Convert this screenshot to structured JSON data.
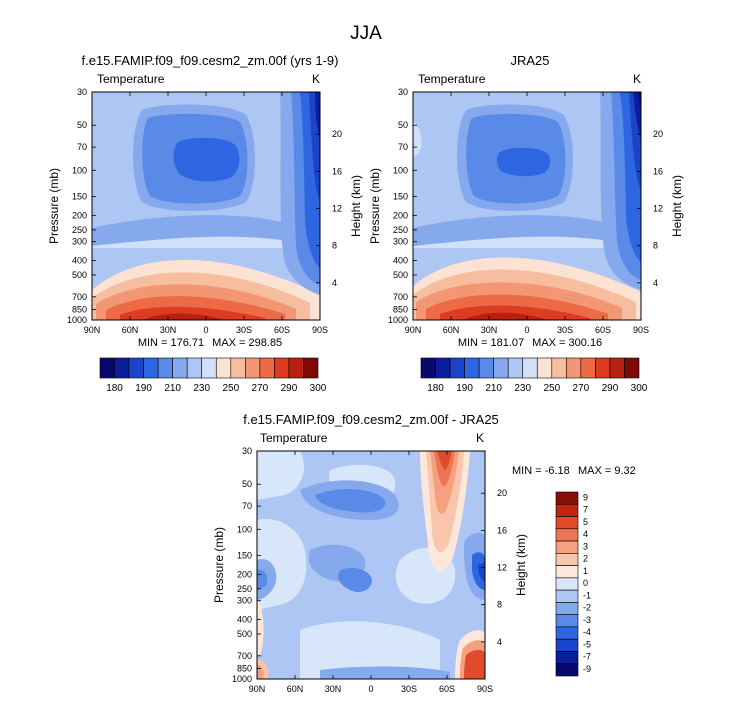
{
  "page_title": "JJA",
  "chart_data": [
    {
      "type": "heatmap",
      "title": "f.e15.FAMIP.f09_f09.cesm2_zm.00f (yrs 1-9)",
      "left_label": "Temperature",
      "right_label": "K",
      "ylabel": "Pressure (mb)",
      "ylabel_right": "Height (km)",
      "x_ticks": [
        "90N",
        "60N",
        "30N",
        "0",
        "30S",
        "60S",
        "90S"
      ],
      "y_ticks": [
        "30",
        "50",
        "70",
        "100",
        "150",
        "200",
        "250",
        "300",
        "400",
        "500",
        "700",
        "850",
        "1000"
      ],
      "y_ticks_right": [
        "20",
        "16",
        "12",
        "8",
        "4"
      ],
      "min_label": "MIN = 176.71",
      "max_label": "MAX = 298.85",
      "min": 176.71,
      "max": 298.85,
      "colorbar_labels": [
        "180",
        "190",
        "210",
        "230",
        "250",
        "270",
        "290",
        "300"
      ]
    },
    {
      "type": "heatmap",
      "title": "JRA25",
      "left_label": "Temperature",
      "right_label": "K",
      "ylabel": "Pressure (mb)",
      "ylabel_right": "Height (km)",
      "x_ticks": [
        "90N",
        "60N",
        "30N",
        "0",
        "30S",
        "60S",
        "90S"
      ],
      "y_ticks": [
        "30",
        "50",
        "70",
        "100",
        "150",
        "200",
        "250",
        "300",
        "400",
        "500",
        "700",
        "850",
        "1000"
      ],
      "y_ticks_right": [
        "20",
        "16",
        "12",
        "8",
        "4"
      ],
      "min_label": "MIN = 181.07",
      "max_label": "MAX = 300.16",
      "min": 181.07,
      "max": 300.16,
      "colorbar_labels": [
        "180",
        "190",
        "210",
        "230",
        "250",
        "270",
        "290",
        "300"
      ]
    },
    {
      "type": "heatmap",
      "title": "f.e15.FAMIP.f09_f09.cesm2_zm.00f - JRA25",
      "left_label": "Temperature",
      "right_label": "K",
      "ylabel": "Pressure (mb)",
      "ylabel_right": "Height (km)",
      "x_ticks": [
        "90N",
        "60N",
        "30N",
        "0",
        "30S",
        "60S",
        "90S"
      ],
      "y_ticks": [
        "30",
        "50",
        "70",
        "100",
        "150",
        "200",
        "250",
        "300",
        "400",
        "500",
        "700",
        "850",
        "1000"
      ],
      "y_ticks_right": [
        "20",
        "16",
        "12",
        "8",
        "4"
      ],
      "min_label": "MIN =  -6.18",
      "max_label": "MAX =   9.32",
      "min": -6.18,
      "max": 9.32,
      "colorbar_labels": [
        "9",
        "7",
        "5",
        "4",
        "3",
        "2",
        "1",
        "0",
        "-1",
        "-2",
        "-3",
        "-4",
        "-5",
        "-7",
        "-9"
      ]
    }
  ],
  "palettes": {
    "absolute": [
      "#08086e",
      "#0a1e9e",
      "#1a45c8",
      "#2d66e0",
      "#5a8ae8",
      "#86a9ee",
      "#adc6f3",
      "#cfe0f8",
      "#fbe2d2",
      "#f7bd9f",
      "#f39673",
      "#ec6a46",
      "#dc3d22",
      "#b8200f",
      "#7e0a08"
    ],
    "difference": [
      "#08086e",
      "#0a1e9e",
      "#1a45c8",
      "#2d66e0",
      "#5a8ae8",
      "#86a9ee",
      "#adc6f3",
      "#d7e6f9",
      "#fde6da",
      "#f9c5ac",
      "#f5a17f",
      "#ee7553",
      "#e24a2d",
      "#c2260f",
      "#8a0d06"
    ]
  }
}
